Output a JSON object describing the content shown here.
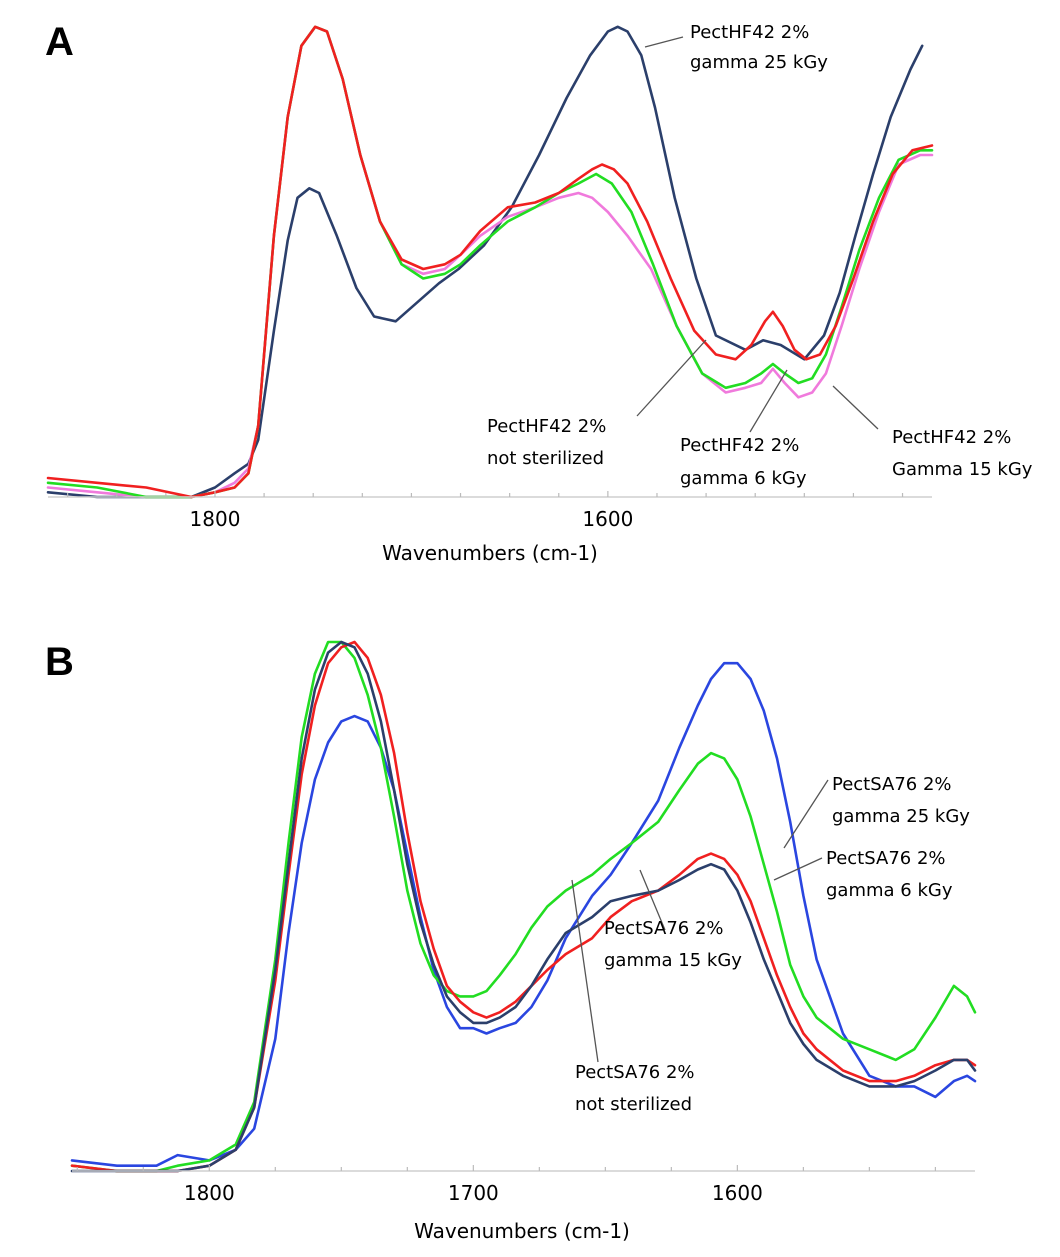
{
  "colors": {
    "dark_blue": "#2b3f6b",
    "blue": "#2a46e0",
    "red": "#f02020",
    "green": "#22dd22",
    "pink": "#f07adc"
  },
  "chart_data": [
    {
      "type": "line",
      "panel_label": "A",
      "xlabel": "Wavenumbers (cm-1)",
      "ylabel": "",
      "xlim": [
        1885,
        1435
      ],
      "ylim": [
        0,
        1
      ],
      "x_reversed": true,
      "xticks": [
        1800,
        1600
      ],
      "grid": false,
      "series": [
        {
          "name": "PectHF42 2% gamma 25 kGy",
          "color": "#2b3f6b",
          "x": [
            1885,
            1860,
            1835,
            1812,
            1800,
            1790,
            1783,
            1778,
            1770,
            1763,
            1758,
            1752,
            1747,
            1738,
            1728,
            1719,
            1708,
            1697,
            1686,
            1676,
            1663,
            1649,
            1635,
            1621,
            1609,
            1600,
            1595,
            1590,
            1583,
            1576,
            1566,
            1555,
            1545,
            1530,
            1521,
            1512,
            1500,
            1490,
            1482,
            1474,
            1465,
            1456,
            1446,
            1440
          ],
          "y": [
            0.01,
            0.0,
            0.0,
            0.0,
            0.02,
            0.05,
            0.07,
            0.12,
            0.35,
            0.54,
            0.63,
            0.65,
            0.64,
            0.55,
            0.44,
            0.38,
            0.37,
            0.41,
            0.45,
            0.48,
            0.53,
            0.61,
            0.72,
            0.84,
            0.93,
            0.98,
            0.99,
            0.98,
            0.93,
            0.82,
            0.63,
            0.46,
            0.34,
            0.31,
            0.33,
            0.32,
            0.29,
            0.34,
            0.43,
            0.55,
            0.68,
            0.8,
            0.9,
            0.95
          ]
        },
        {
          "name": "PectHF42 2% not sterilized",
          "color": "#f07adc",
          "x": [
            1885,
            1860,
            1835,
            1812,
            1800,
            1790,
            1783,
            1778,
            1770,
            1763,
            1756,
            1749,
            1743,
            1735,
            1726,
            1716,
            1705,
            1694,
            1683,
            1675,
            1665,
            1651,
            1637,
            1625,
            1615,
            1608,
            1600,
            1590,
            1578,
            1565,
            1552,
            1540,
            1530,
            1522,
            1516,
            1510,
            1503,
            1496,
            1489,
            1481,
            1472,
            1462,
            1452,
            1441,
            1435
          ],
          "y": [
            0.02,
            0.01,
            0.0,
            0.0,
            0.01,
            0.03,
            0.06,
            0.15,
            0.55,
            0.8,
            0.95,
            0.99,
            0.98,
            0.88,
            0.72,
            0.58,
            0.49,
            0.47,
            0.48,
            0.51,
            0.55,
            0.59,
            0.61,
            0.63,
            0.64,
            0.63,
            0.6,
            0.55,
            0.48,
            0.36,
            0.26,
            0.22,
            0.23,
            0.24,
            0.27,
            0.24,
            0.21,
            0.22,
            0.26,
            0.36,
            0.48,
            0.6,
            0.7,
            0.72,
            0.72
          ]
        },
        {
          "name": "PectHF42 2% gamma 6 kGy",
          "color": "#22dd22",
          "x": [
            1885,
            1860,
            1835,
            1812,
            1800,
            1790,
            1783,
            1778,
            1770,
            1763,
            1756,
            1749,
            1743,
            1735,
            1726,
            1716,
            1705,
            1694,
            1683,
            1675,
            1665,
            1651,
            1637,
            1625,
            1615,
            1606,
            1598,
            1588,
            1577,
            1565,
            1552,
            1540,
            1530,
            1522,
            1516,
            1510,
            1503,
            1496,
            1489,
            1481,
            1472,
            1462,
            1452,
            1441,
            1435
          ],
          "y": [
            0.03,
            0.02,
            0.0,
            0.0,
            0.01,
            0.02,
            0.05,
            0.15,
            0.55,
            0.8,
            0.95,
            0.99,
            0.98,
            0.88,
            0.72,
            0.58,
            0.49,
            0.46,
            0.47,
            0.49,
            0.53,
            0.58,
            0.61,
            0.64,
            0.66,
            0.68,
            0.66,
            0.6,
            0.49,
            0.36,
            0.26,
            0.23,
            0.24,
            0.26,
            0.28,
            0.26,
            0.24,
            0.25,
            0.3,
            0.4,
            0.52,
            0.63,
            0.71,
            0.73,
            0.73
          ]
        },
        {
          "name": "PectHF42 2% Gamma 15 kGy",
          "color": "#f02020",
          "x": [
            1885,
            1860,
            1835,
            1812,
            1800,
            1790,
            1783,
            1778,
            1770,
            1763,
            1756,
            1749,
            1743,
            1735,
            1726,
            1716,
            1705,
            1694,
            1683,
            1675,
            1665,
            1651,
            1637,
            1625,
            1615,
            1608,
            1603,
            1597,
            1590,
            1580,
            1568,
            1556,
            1545,
            1535,
            1527,
            1520,
            1516,
            1511,
            1505,
            1499,
            1492,
            1484,
            1475,
            1465,
            1455,
            1445,
            1435
          ],
          "y": [
            0.04,
            0.03,
            0.02,
            0.0,
            0.01,
            0.02,
            0.05,
            0.15,
            0.55,
            0.8,
            0.95,
            0.99,
            0.98,
            0.88,
            0.72,
            0.58,
            0.5,
            0.48,
            0.49,
            0.51,
            0.56,
            0.61,
            0.62,
            0.64,
            0.67,
            0.69,
            0.7,
            0.69,
            0.66,
            0.58,
            0.46,
            0.35,
            0.3,
            0.29,
            0.32,
            0.37,
            0.39,
            0.36,
            0.31,
            0.29,
            0.3,
            0.36,
            0.46,
            0.58,
            0.68,
            0.73,
            0.74
          ]
        }
      ],
      "annotations": [
        {
          "lines": [
            "PectHF42 2%",
            "gamma 25 kGy"
          ]
        },
        {
          "lines": [
            "PectHF42 2%",
            "not sterilized"
          ]
        },
        {
          "lines": [
            "PectHF42 2%",
            "gamma 6 kGy"
          ]
        },
        {
          "lines": [
            "PectHF42 2%",
            "Gamma 15 kGy"
          ]
        }
      ]
    },
    {
      "type": "line",
      "panel_label": "B",
      "xlabel": "Wavenumbers (cm-1)",
      "ylabel": "",
      "xlim": [
        1852,
        1510
      ],
      "ylim": [
        0,
        1
      ],
      "x_reversed": true,
      "xticks": [
        1800,
        1700,
        1600
      ],
      "grid": false,
      "series": [
        {
          "name": "PectSA76 2% gamma 25 kGy",
          "color": "#2a46e0",
          "x": [
            1852,
            1835,
            1820,
            1812,
            1800,
            1790,
            1783,
            1775,
            1770,
            1765,
            1760,
            1755,
            1750,
            1745,
            1740,
            1735,
            1730,
            1725,
            1720,
            1715,
            1710,
            1705,
            1700,
            1695,
            1690,
            1684,
            1678,
            1672,
            1665,
            1655,
            1648,
            1640,
            1630,
            1622,
            1615,
            1610,
            1605,
            1600,
            1595,
            1590,
            1585,
            1580,
            1575,
            1570,
            1560,
            1550,
            1540,
            1533,
            1525,
            1518,
            1513,
            1510
          ],
          "y": [
            0.02,
            0.01,
            0.01,
            0.03,
            0.02,
            0.04,
            0.08,
            0.25,
            0.45,
            0.62,
            0.74,
            0.81,
            0.85,
            0.86,
            0.85,
            0.8,
            0.72,
            0.6,
            0.48,
            0.38,
            0.31,
            0.27,
            0.27,
            0.26,
            0.27,
            0.28,
            0.31,
            0.36,
            0.44,
            0.52,
            0.56,
            0.62,
            0.7,
            0.8,
            0.88,
            0.93,
            0.96,
            0.96,
            0.93,
            0.87,
            0.78,
            0.66,
            0.52,
            0.4,
            0.26,
            0.18,
            0.16,
            0.16,
            0.14,
            0.17,
            0.18,
            0.17
          ]
        },
        {
          "name": "PectSA76 2% gamma 6 kGy",
          "color": "#22dd22",
          "x": [
            1852,
            1835,
            1820,
            1812,
            1800,
            1790,
            1783,
            1775,
            1770,
            1765,
            1760,
            1755,
            1750,
            1745,
            1740,
            1735,
            1730,
            1725,
            1720,
            1715,
            1710,
            1705,
            1700,
            1695,
            1690,
            1684,
            1678,
            1672,
            1665,
            1655,
            1648,
            1640,
            1630,
            1622,
            1615,
            1610,
            1605,
            1600,
            1595,
            1590,
            1585,
            1580,
            1575,
            1570,
            1560,
            1550,
            1540,
            1533,
            1525,
            1518,
            1513,
            1510
          ],
          "y": [
            0.01,
            0.0,
            0.0,
            0.01,
            0.02,
            0.05,
            0.13,
            0.4,
            0.62,
            0.82,
            0.94,
            1.0,
            1.0,
            0.97,
            0.9,
            0.8,
            0.67,
            0.53,
            0.43,
            0.37,
            0.34,
            0.33,
            0.33,
            0.34,
            0.37,
            0.41,
            0.46,
            0.5,
            0.53,
            0.56,
            0.59,
            0.62,
            0.66,
            0.72,
            0.77,
            0.79,
            0.78,
            0.74,
            0.67,
            0.58,
            0.49,
            0.39,
            0.33,
            0.29,
            0.25,
            0.23,
            0.21,
            0.23,
            0.29,
            0.35,
            0.33,
            0.3
          ]
        },
        {
          "name": "PectSA76 2% gamma 15 kGy",
          "color": "#f02020",
          "x": [
            1852,
            1835,
            1820,
            1812,
            1800,
            1790,
            1783,
            1775,
            1770,
            1765,
            1760,
            1755,
            1750,
            1745,
            1740,
            1735,
            1730,
            1725,
            1720,
            1715,
            1710,
            1705,
            1700,
            1695,
            1690,
            1684,
            1678,
            1672,
            1665,
            1655,
            1648,
            1640,
            1630,
            1622,
            1615,
            1610,
            1605,
            1600,
            1595,
            1590,
            1585,
            1580,
            1575,
            1570,
            1560,
            1550,
            1540,
            1533,
            1525,
            1518,
            1513,
            1510
          ],
          "y": [
            0.01,
            0.0,
            0.0,
            0.0,
            0.01,
            0.04,
            0.12,
            0.36,
            0.56,
            0.75,
            0.88,
            0.96,
            0.99,
            1.0,
            0.97,
            0.9,
            0.79,
            0.64,
            0.51,
            0.42,
            0.35,
            0.32,
            0.3,
            0.29,
            0.3,
            0.32,
            0.35,
            0.38,
            0.41,
            0.44,
            0.48,
            0.51,
            0.53,
            0.56,
            0.59,
            0.6,
            0.59,
            0.56,
            0.51,
            0.44,
            0.37,
            0.31,
            0.26,
            0.23,
            0.19,
            0.17,
            0.17,
            0.18,
            0.2,
            0.21,
            0.21,
            0.2
          ]
        },
        {
          "name": "PectSA76 2% not sterilized",
          "color": "#2b3f6b",
          "x": [
            1852,
            1835,
            1820,
            1812,
            1800,
            1790,
            1783,
            1775,
            1770,
            1765,
            1760,
            1755,
            1750,
            1745,
            1740,
            1735,
            1730,
            1725,
            1720,
            1715,
            1710,
            1705,
            1700,
            1695,
            1690,
            1684,
            1678,
            1672,
            1665,
            1655,
            1648,
            1640,
            1630,
            1622,
            1615,
            1610,
            1605,
            1600,
            1595,
            1590,
            1585,
            1580,
            1575,
            1570,
            1560,
            1550,
            1540,
            1533,
            1525,
            1518,
            1513,
            1510
          ],
          "y": [
            0.0,
            0.0,
            0.0,
            0.0,
            0.01,
            0.04,
            0.12,
            0.38,
            0.58,
            0.78,
            0.91,
            0.98,
            1.0,
            0.99,
            0.94,
            0.85,
            0.72,
            0.58,
            0.47,
            0.39,
            0.33,
            0.3,
            0.28,
            0.28,
            0.29,
            0.31,
            0.35,
            0.4,
            0.45,
            0.48,
            0.51,
            0.52,
            0.53,
            0.55,
            0.57,
            0.58,
            0.57,
            0.53,
            0.47,
            0.4,
            0.34,
            0.28,
            0.24,
            0.21,
            0.18,
            0.16,
            0.16,
            0.17,
            0.19,
            0.21,
            0.21,
            0.19
          ]
        }
      ],
      "annotations": [
        {
          "lines": [
            "PectSA76 2%",
            "gamma 25 kGy"
          ]
        },
        {
          "lines": [
            "PectSA76 2%",
            "gamma 6 kGy"
          ]
        },
        {
          "lines": [
            "PectSA76 2%",
            "gamma 15 kGy"
          ]
        },
        {
          "lines": [
            "PectSA76 2%",
            "not sterilized"
          ]
        }
      ]
    }
  ]
}
